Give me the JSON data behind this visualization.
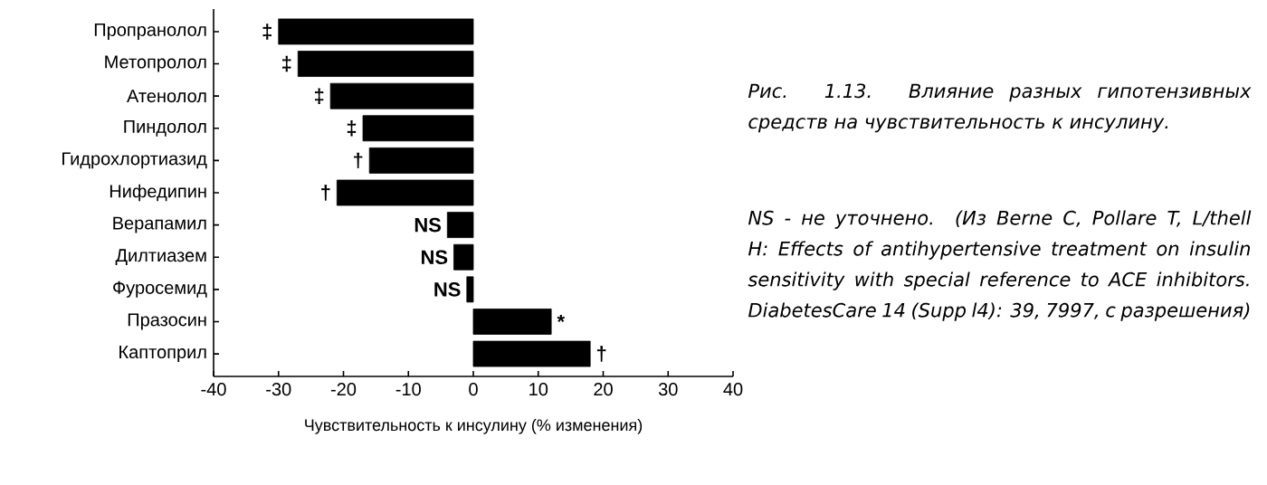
{
  "chart_data": {
    "type": "bar",
    "orientation": "horizontal",
    "title": "Рис. 1.13. Влияние разных гипотензивных средств на чувствительность к инсулину.",
    "xlabel": "Чувствительность к инсулину (% изменения)",
    "categories": [
      "Пропранолол",
      "Метопролол",
      "Атенолол",
      "Пиндолол",
      "Гидрохлортиазид",
      "Нифедипин",
      "Верапамил",
      "Дилтиазем",
      "Фуросемид",
      "Празосин",
      "Каптоприл"
    ],
    "values": [
      -30,
      -27,
      -22,
      -17,
      -16,
      -21,
      -4,
      -3,
      -1,
      12,
      18
    ],
    "value_labels": [
      "‡",
      "‡",
      "‡",
      "‡",
      "†",
      "†",
      "NS",
      "NS",
      "NS",
      "*",
      "†"
    ],
    "color": "#000000",
    "xlim": [
      -40,
      40
    ],
    "xticks": [
      -40,
      -30,
      -20,
      -10,
      0,
      10,
      20,
      30,
      40
    ],
    "annotations": [
      "NS - не уточнено. (Из Berne C, Pollare T, L/thell H: Effects of antihypertensive treatment on insulin sensitivity with special reference to ACE inhibitors. DiabetesCare 14 (Supp l4): 39, 7997, с разрешения)"
    ],
    "grid": false
  }
}
